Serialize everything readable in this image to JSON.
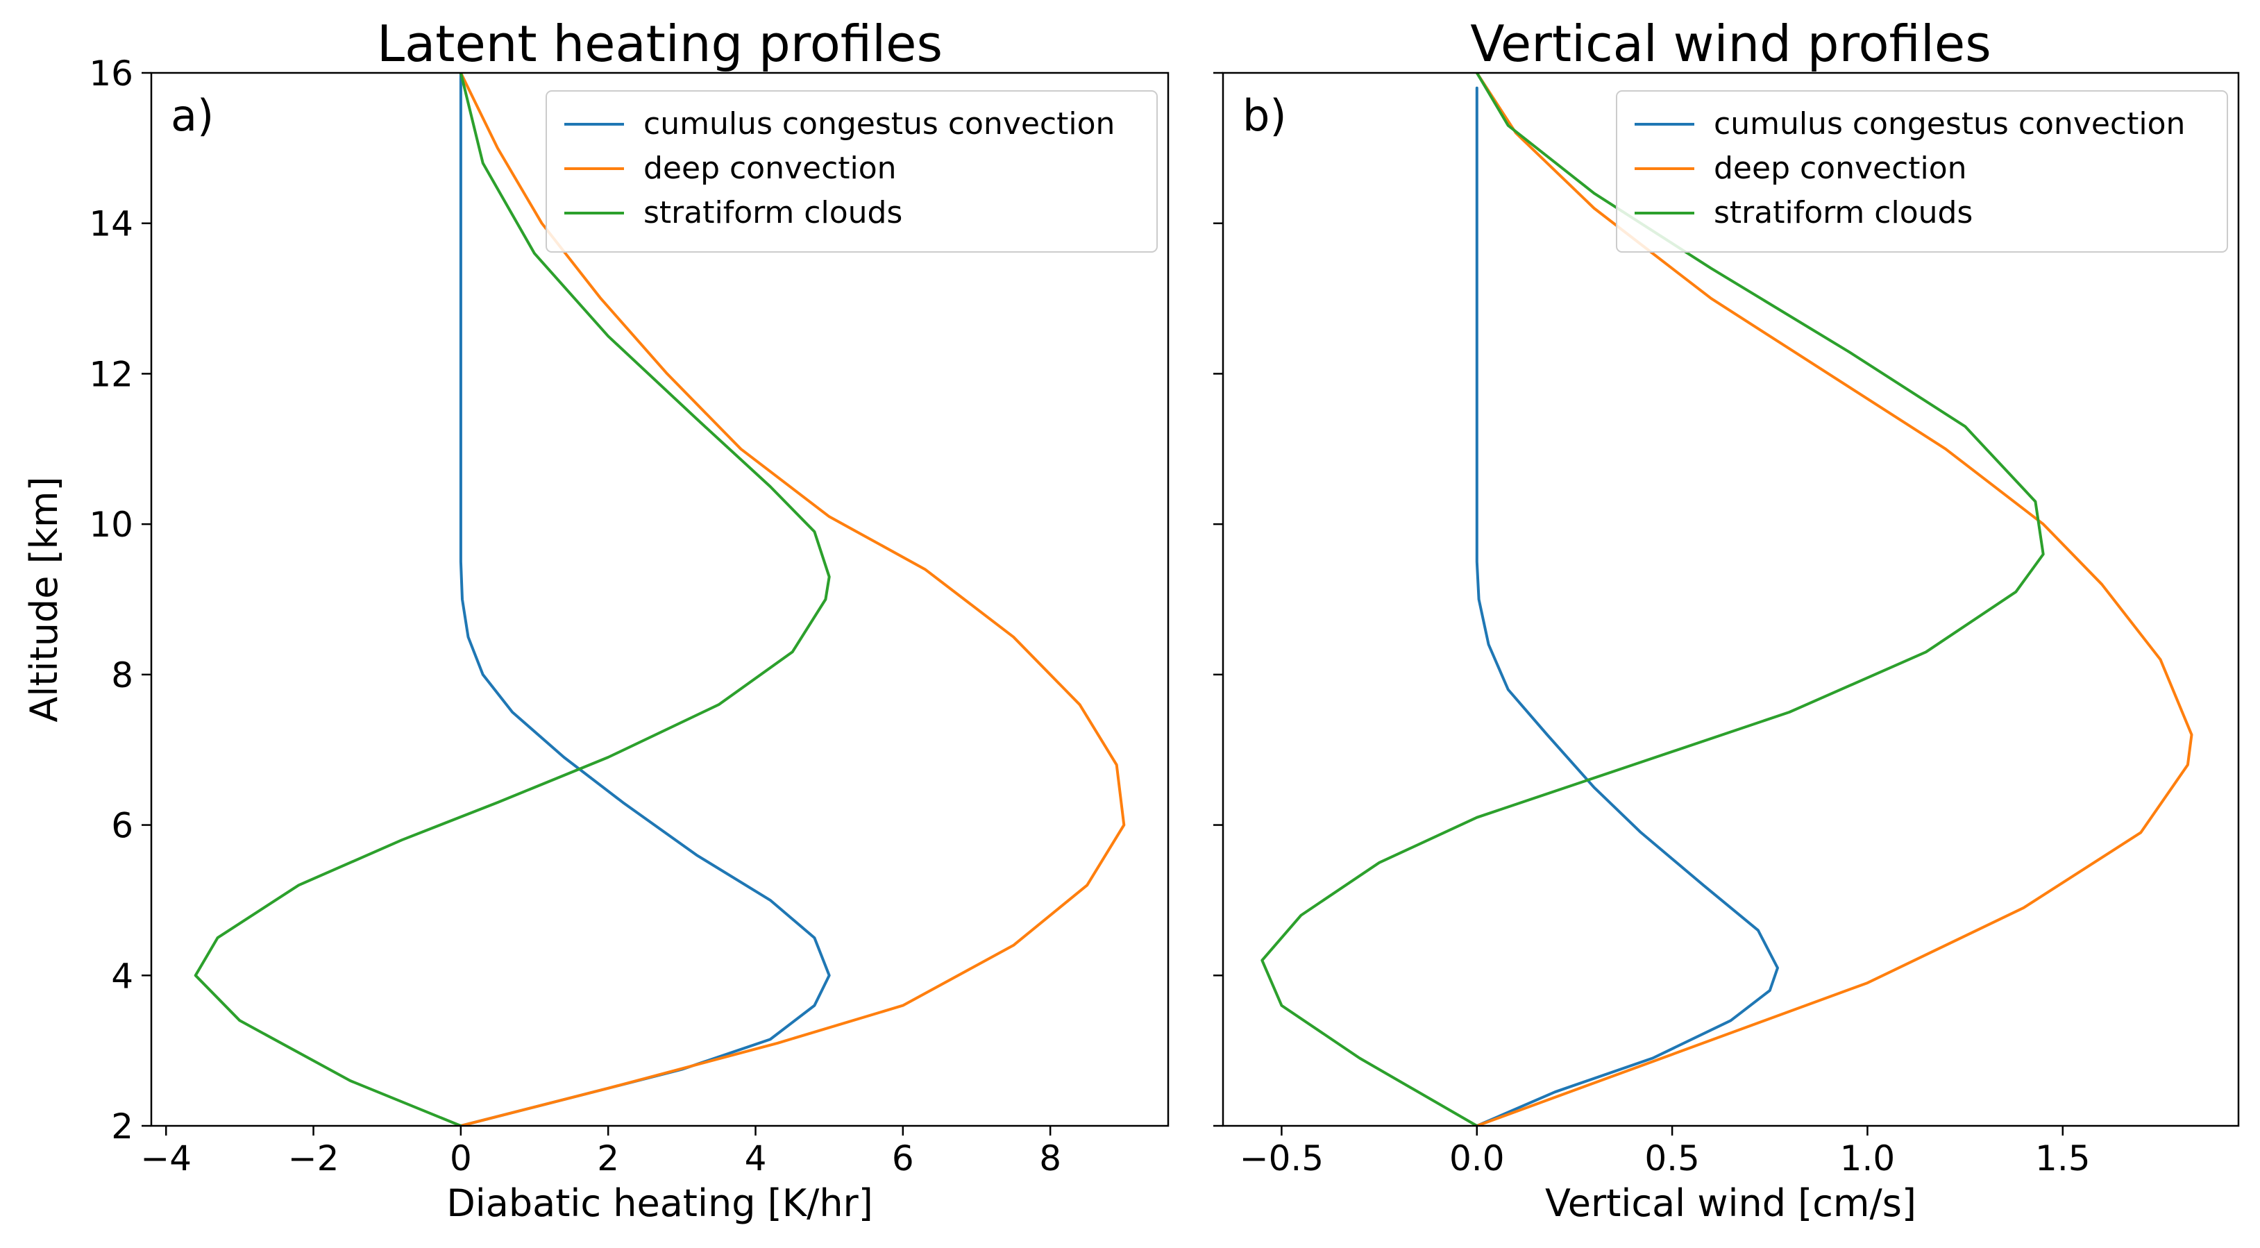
{
  "figure": {
    "panels": [
      {
        "id": "a",
        "panel_label": "a)",
        "title": "Latent heating profiles",
        "xlabel": "Diabatic heating [K/hr]",
        "ylabel": "Altitude [km]",
        "show_ylabel": true
      },
      {
        "id": "b",
        "panel_label": "b)",
        "title": "Vertical wind profiles",
        "xlabel": "Vertical wind [cm/s]",
        "ylabel": "",
        "show_ylabel": false
      }
    ],
    "colors": {
      "cumulus": "#1f77b4",
      "deep": "#ff7f0e",
      "stratiform": "#2ca02c",
      "axes": "#000000",
      "legend_border": "#cccccc"
    }
  },
  "chart_data": [
    {
      "type": "line",
      "title": "Latent heating profiles",
      "xlabel": "Diabatic heating [K/hr]",
      "ylabel": "Altitude [km]",
      "xlim": [
        -4.2,
        9.6
      ],
      "ylim": [
        2,
        16
      ],
      "xticks": [
        -4,
        -2,
        0,
        2,
        4,
        6,
        8
      ],
      "xtick_labels": [
        "−4",
        "−2",
        "0",
        "2",
        "4",
        "6",
        "8"
      ],
      "yticks": [
        2,
        4,
        6,
        8,
        10,
        12,
        14,
        16
      ],
      "ytick_labels": [
        "2",
        "4",
        "6",
        "8",
        "10",
        "12",
        "14",
        "16"
      ],
      "legend_position": "top-right",
      "grid": false,
      "series": [
        {
          "name": "cumulus congestus convection",
          "color": "#1f77b4",
          "points": [
            [
              0,
              2
            ],
            [
              1,
              2.25
            ],
            [
              2,
              2.5
            ],
            [
              3,
              2.75
            ],
            [
              4.2,
              3.15
            ],
            [
              4.8,
              3.6
            ],
            [
              5.0,
              4.0
            ],
            [
              4.8,
              4.5
            ],
            [
              4.2,
              5.0
            ],
            [
              3.2,
              5.6
            ],
            [
              2.2,
              6.3
            ],
            [
              1.4,
              6.9
            ],
            [
              0.7,
              7.5
            ],
            [
              0.3,
              8.0
            ],
            [
              0.1,
              8.5
            ],
            [
              0.02,
              9.0
            ],
            [
              0,
              9.5
            ],
            [
              0,
              12
            ],
            [
              0,
              16
            ]
          ]
        },
        {
          "name": "deep convection",
          "color": "#ff7f0e",
          "points": [
            [
              0,
              2
            ],
            [
              2,
              2.5
            ],
            [
              4.3,
              3.1
            ],
            [
              6,
              3.6
            ],
            [
              7.5,
              4.4
            ],
            [
              8.5,
              5.2
            ],
            [
              9.0,
              6.0
            ],
            [
              8.9,
              6.8
            ],
            [
              8.4,
              7.6
            ],
            [
              7.5,
              8.5
            ],
            [
              6.3,
              9.4
            ],
            [
              5.0,
              10.1
            ],
            [
              3.8,
              11.0
            ],
            [
              2.8,
              12.0
            ],
            [
              1.9,
              13.0
            ],
            [
              1.1,
              14.0
            ],
            [
              0.5,
              15.0
            ],
            [
              0,
              16
            ]
          ]
        },
        {
          "name": "stratiform clouds",
          "color": "#2ca02c",
          "points": [
            [
              0,
              2
            ],
            [
              -1.5,
              2.6
            ],
            [
              -3.0,
              3.4
            ],
            [
              -3.6,
              4.0
            ],
            [
              -3.3,
              4.5
            ],
            [
              -2.2,
              5.2
            ],
            [
              -0.8,
              5.8
            ],
            [
              0.5,
              6.3
            ],
            [
              2.0,
              6.9
            ],
            [
              3.5,
              7.6
            ],
            [
              4.5,
              8.3
            ],
            [
              4.95,
              9.0
            ],
            [
              5.0,
              9.3
            ],
            [
              4.8,
              9.9
            ],
            [
              4.2,
              10.5
            ],
            [
              3.2,
              11.4
            ],
            [
              2.0,
              12.5
            ],
            [
              1.0,
              13.6
            ],
            [
              0.3,
              14.8
            ],
            [
              0,
              16
            ]
          ]
        }
      ]
    },
    {
      "type": "line",
      "title": "Vertical wind profiles",
      "xlabel": "Vertical wind [cm/s]",
      "ylabel": "",
      "xlim": [
        -0.65,
        1.95
      ],
      "ylim": [
        2,
        16
      ],
      "xticks": [
        -0.5,
        0.0,
        0.5,
        1.0,
        1.5
      ],
      "xtick_labels": [
        "−0.5",
        "0.0",
        "0.5",
        "1.0",
        "1.5"
      ],
      "yticks": [
        2,
        4,
        6,
        8,
        10,
        12,
        14,
        16
      ],
      "ytick_labels": [],
      "legend_position": "top-right",
      "grid": false,
      "series": [
        {
          "name": "cumulus congestus convection",
          "color": "#1f77b4",
          "points": [
            [
              0,
              2
            ],
            [
              0.2,
              2.45
            ],
            [
              0.45,
              2.9
            ],
            [
              0.65,
              3.4
            ],
            [
              0.75,
              3.8
            ],
            [
              0.77,
              4.1
            ],
            [
              0.72,
              4.6
            ],
            [
              0.58,
              5.2
            ],
            [
              0.42,
              5.9
            ],
            [
              0.3,
              6.5
            ],
            [
              0.18,
              7.2
            ],
            [
              0.08,
              7.8
            ],
            [
              0.03,
              8.4
            ],
            [
              0.005,
              9.0
            ],
            [
              0,
              9.5
            ],
            [
              0,
              12
            ],
            [
              0,
              15.8
            ]
          ]
        },
        {
          "name": "deep convection",
          "color": "#ff7f0e",
          "points": [
            [
              0,
              2
            ],
            [
              0.5,
              2.95
            ],
            [
              1.0,
              3.9
            ],
            [
              1.4,
              4.9
            ],
            [
              1.7,
              5.9
            ],
            [
              1.82,
              6.8
            ],
            [
              1.83,
              7.2
            ],
            [
              1.75,
              8.2
            ],
            [
              1.6,
              9.2
            ],
            [
              1.45,
              10.0
            ],
            [
              1.2,
              11.0
            ],
            [
              0.9,
              12.0
            ],
            [
              0.6,
              13.0
            ],
            [
              0.3,
              14.2
            ],
            [
              0.1,
              15.2
            ],
            [
              0,
              16
            ]
          ]
        },
        {
          "name": "stratiform clouds",
          "color": "#2ca02c",
          "points": [
            [
              0,
              2
            ],
            [
              -0.3,
              2.9
            ],
            [
              -0.5,
              3.6
            ],
            [
              -0.55,
              4.2
            ],
            [
              -0.45,
              4.8
            ],
            [
              -0.25,
              5.5
            ],
            [
              0.0,
              6.1
            ],
            [
              0.4,
              6.8
            ],
            [
              0.8,
              7.5
            ],
            [
              1.15,
              8.3
            ],
            [
              1.38,
              9.1
            ],
            [
              1.45,
              9.6
            ],
            [
              1.43,
              10.3
            ],
            [
              1.25,
              11.3
            ],
            [
              0.95,
              12.3
            ],
            [
              0.6,
              13.4
            ],
            [
              0.3,
              14.4
            ],
            [
              0.08,
              15.3
            ],
            [
              0,
              16
            ]
          ]
        }
      ]
    }
  ]
}
